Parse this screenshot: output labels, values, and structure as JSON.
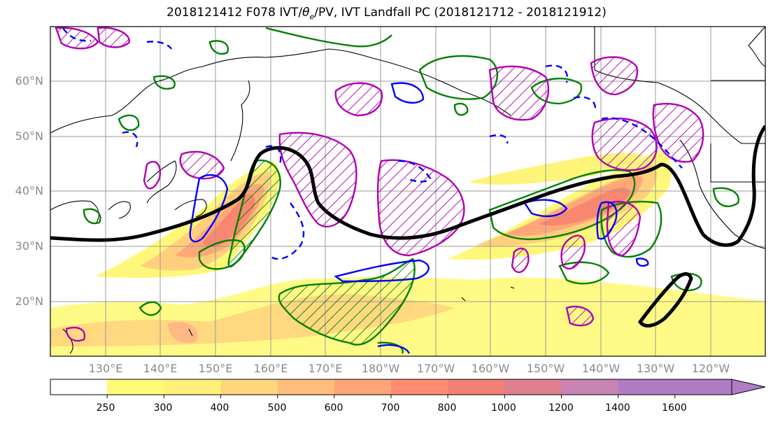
{
  "title": "2018121412 F078 IVT/θe/PV, IVT Landfall PC (2018121712 - 2018121912)",
  "title_parts": {
    "prefix": "2018121412 F078 IVT/",
    "theta": "θ",
    "sub_e": "e",
    "suffix": "/PV, IVT Landfall PC (2018121712 - 2018121912)"
  },
  "map": {
    "lat_labels": [
      "60°N",
      "50°N",
      "40°N",
      "30°N",
      "20°N"
    ],
    "lon_labels": [
      "130°E",
      "140°E",
      "150°E",
      "160°E",
      "170°E",
      "180°W",
      "170°W",
      "160°W",
      "150°W",
      "140°W",
      "130°W",
      "120°W"
    ],
    "extent": {
      "lon_min": 120,
      "lon_max": 250,
      "lat_min": 10,
      "lat_max": 70
    },
    "grid": true,
    "projection": "PlateCarree (lon 120E to 110W)",
    "contour_colors": {
      "theta_e": "#000000",
      "pv_positive": "#0000ff",
      "pv_negative": "#0000ff",
      "landfall_pc_positive": "#b000b0",
      "landfall_pc_negative": "#008000",
      "coastline": "#000000"
    }
  },
  "colorbar": {
    "levels": [
      "250",
      "300",
      "400",
      "500",
      "600",
      "700",
      "800",
      "1000",
      "1200",
      "1400",
      "1600"
    ],
    "colors": [
      "#ffffff",
      "#fffb77",
      "#fff07a",
      "#ffd67c",
      "#ffbd7c",
      "#ffa578",
      "#ff8c73",
      "#f28276",
      "#df7f90",
      "#c784b2",
      "#b07dc5"
    ],
    "extend": "max"
  }
}
